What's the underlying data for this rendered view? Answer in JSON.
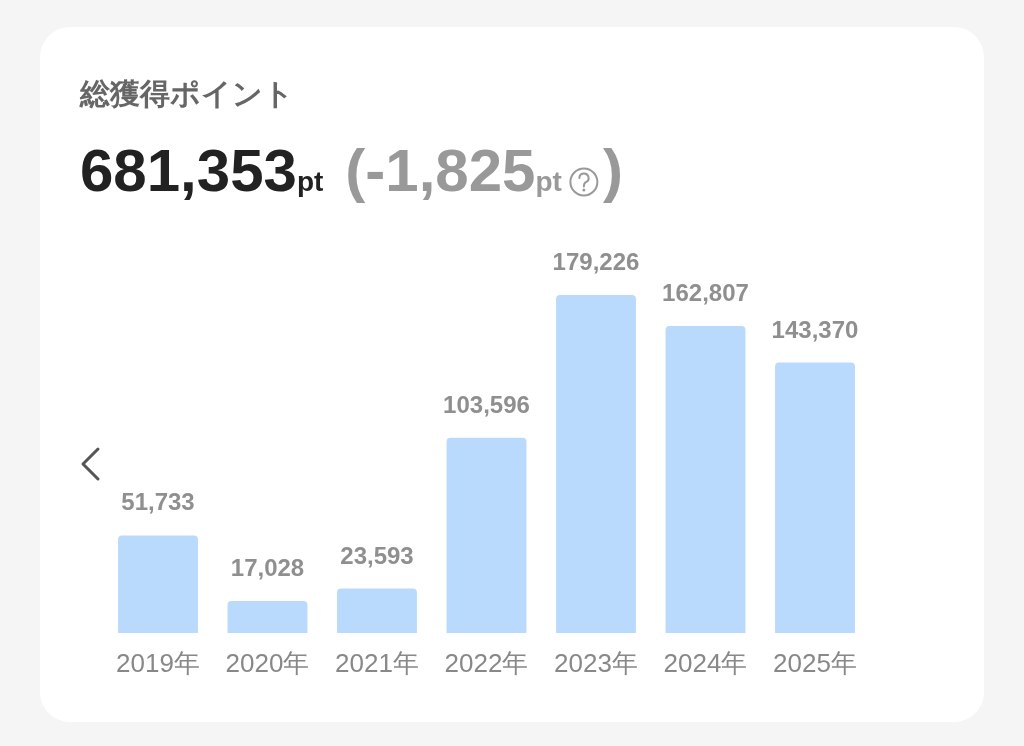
{
  "chart_data": {
    "type": "bar",
    "title": "総獲得ポイント",
    "subtitle": "681,353pt",
    "annotations": [
      "(-1,825pt",
      ")"
    ],
    "categories": [
      "2019年",
      "2020年",
      "2021年",
      "2022年",
      "2023年",
      "2024年",
      "2025年"
    ],
    "values": [
      51733,
      17028,
      23593,
      103596,
      179226,
      162807,
      143370
    ],
    "value_labels": [
      "51,733",
      "17,028",
      "23,593",
      "103,596",
      "179,226",
      "162,807",
      "143,370"
    ],
    "color": "#badafd"
  }
}
